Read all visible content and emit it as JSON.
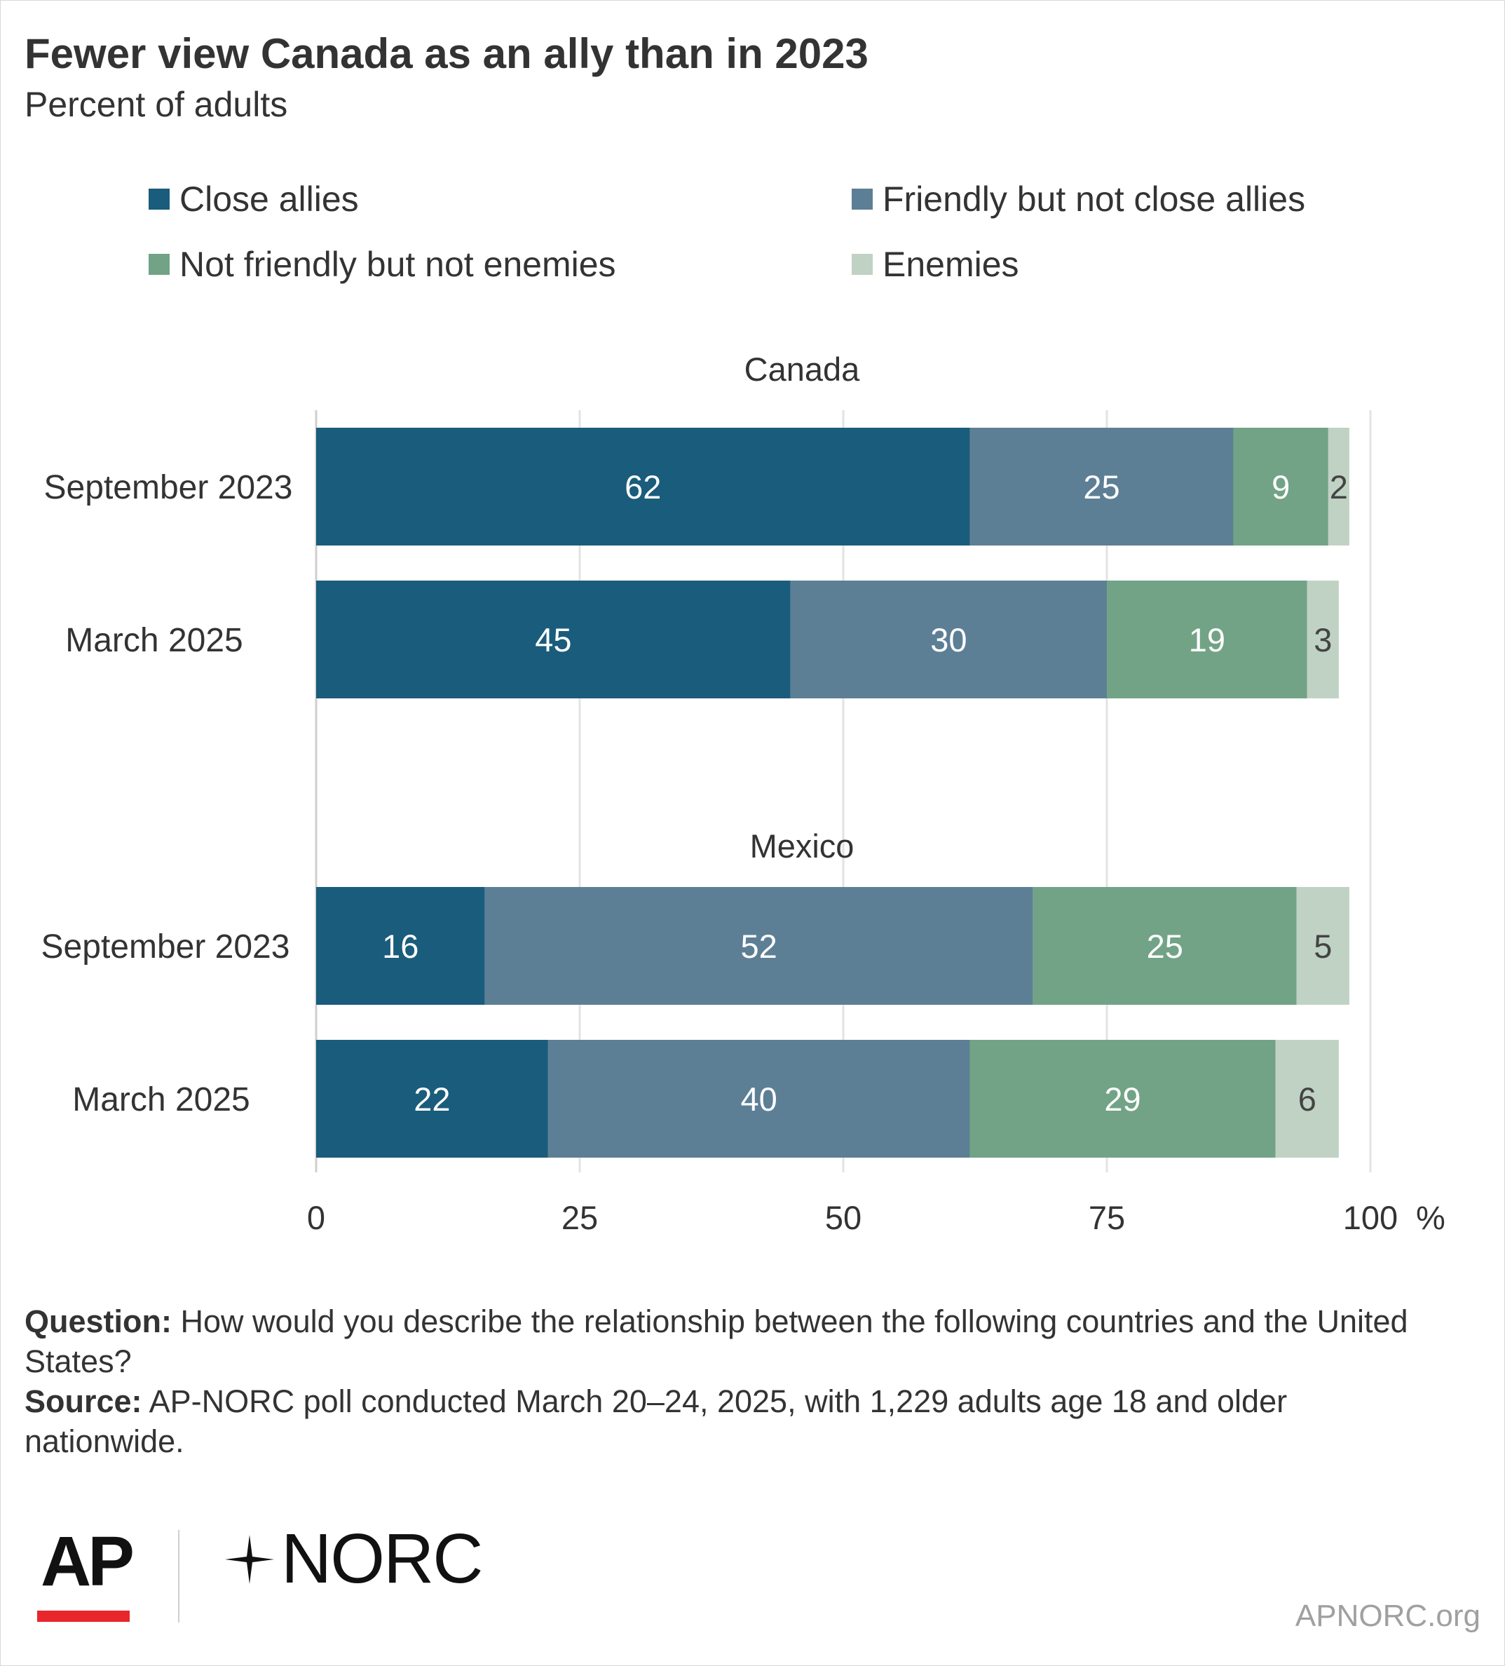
{
  "title": "Fewer view Canada as an ally than in 2023",
  "subtitle": "Percent of adults",
  "legend": [
    {
      "label": "Close allies",
      "color": "#1a5c7b"
    },
    {
      "label": "Friendly but not close allies",
      "color": "#5d7f95"
    },
    {
      "label": "Not friendly but not enemies",
      "color": "#72a386"
    },
    {
      "label": "Enemies",
      "color": "#c0d2c4"
    }
  ],
  "chart_data": {
    "type": "bar",
    "orientation": "horizontal",
    "stacked": true,
    "xlim": [
      0,
      100
    ],
    "xticks": [
      "0",
      "25",
      "50",
      "75",
      "100"
    ],
    "x_unit": "%",
    "grid": true,
    "legend_position": "top",
    "series_names": [
      "Close allies",
      "Friendly but not close allies",
      "Not friendly but not enemies",
      "Enemies"
    ],
    "groups": [
      {
        "name": "Canada",
        "rows": [
          {
            "label": "September 2023",
            "values": [
              62,
              25,
              9,
              2
            ]
          },
          {
            "label": "March 2025",
            "values": [
              45,
              30,
              19,
              3
            ]
          }
        ]
      },
      {
        "name": "Mexico",
        "rows": [
          {
            "label": "September 2023",
            "values": [
              16,
              52,
              25,
              5
            ]
          },
          {
            "label": "March 2025",
            "values": [
              22,
              40,
              29,
              6
            ]
          }
        ]
      }
    ]
  },
  "footnote": {
    "question_label": "Question:",
    "question_text": "How would you describe the relationship between the following countries and the United States?",
    "source_label": "Source:",
    "source_text": "AP-NORC poll conducted March 20–24, 2025, with 1,229 adults age 18 and older nationwide."
  },
  "logos": {
    "ap": "AP",
    "norc": "NORC"
  },
  "site": "APNORC.org"
}
